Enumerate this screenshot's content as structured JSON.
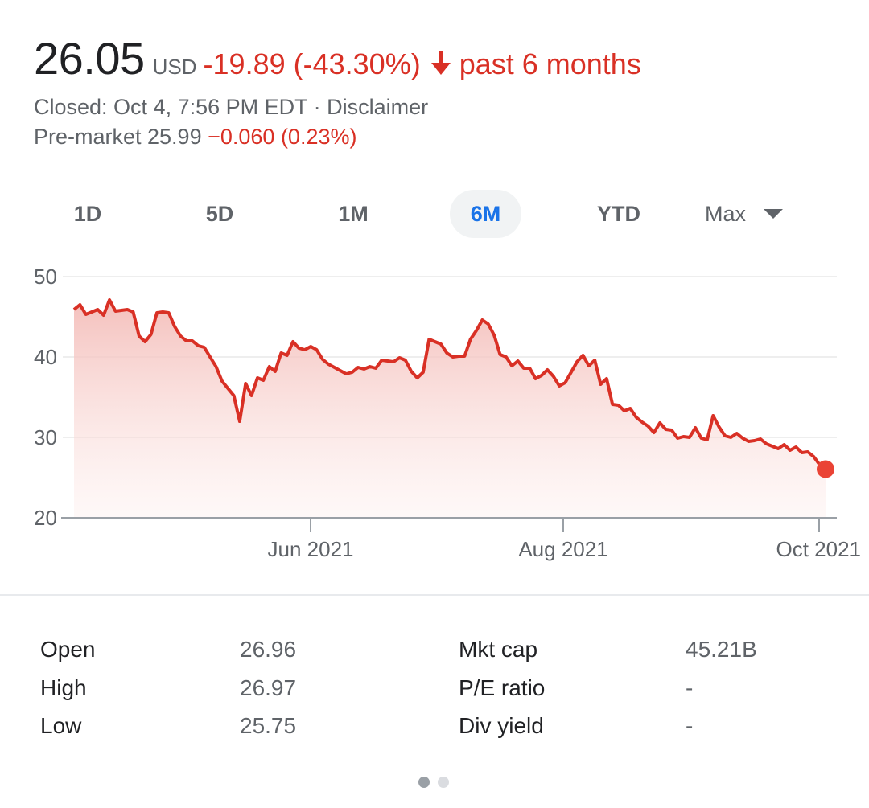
{
  "header": {
    "price": "26.05",
    "currency": "USD",
    "change": "-19.89 (-43.30%)",
    "period": "past 6 months",
    "closed_text": "Closed: Oct 4, 7:56 PM EDT · Disclaimer",
    "premarket_label": "Pre-market 25.99",
    "premarket_change": "−0.060 (0.23%)",
    "accent_color": "#d93025"
  },
  "tabs": [
    {
      "label": "1D",
      "active": false
    },
    {
      "label": "5D",
      "active": false
    },
    {
      "label": "1M",
      "active": false
    },
    {
      "label": "6M",
      "active": true
    },
    {
      "label": "YTD",
      "active": false
    },
    {
      "label": "Max",
      "active": false
    }
  ],
  "chart_data": {
    "type": "area",
    "y_ticks": [
      "50",
      "40",
      "30",
      "20"
    ],
    "x_ticks": [
      "Jun 2021",
      "Aug 2021",
      "Oct 2021"
    ],
    "ylim": [
      20,
      50
    ],
    "grid": true,
    "line_color": "#d93025",
    "values": [
      45.9,
      46.5,
      45.3,
      45.6,
      45.9,
      45.2,
      47.1,
      45.7,
      45.8,
      45.9,
      45.6,
      42.6,
      41.9,
      42.8,
      45.5,
      45.6,
      45.5,
      43.8,
      42.6,
      42.0,
      42.0,
      41.4,
      41.2,
      40.0,
      38.8,
      37.0,
      36.1,
      35.2,
      32.0,
      36.7,
      35.2,
      37.4,
      37.1,
      38.8,
      38.2,
      40.5,
      40.2,
      41.9,
      41.1,
      40.9,
      41.3,
      40.9,
      39.7,
      39.1,
      38.7,
      38.3,
      37.9,
      38.1,
      38.7,
      38.5,
      38.8,
      38.6,
      39.6,
      39.5,
      39.4,
      39.9,
      39.6,
      38.2,
      37.4,
      38.1,
      42.2,
      41.9,
      41.6,
      40.5,
      40.0,
      40.1,
      40.1,
      42.2,
      43.3,
      44.6,
      44.1,
      42.7,
      40.3,
      40.0,
      38.9,
      39.5,
      38.6,
      38.6,
      37.3,
      37.7,
      38.4,
      37.6,
      36.4,
      36.8,
      38.1,
      39.4,
      40.2,
      38.9,
      39.6,
      36.6,
      37.3,
      34.1,
      34.0,
      33.3,
      33.6,
      32.5,
      31.9,
      31.4,
      30.6,
      31.8,
      31.0,
      30.9,
      29.9,
      30.1,
      30.0,
      31.2,
      29.9,
      29.7,
      32.7,
      31.3,
      30.2,
      30.0,
      30.5,
      29.9,
      29.5,
      29.6,
      29.8,
      29.2,
      28.9,
      28.6,
      29.1,
      28.4,
      28.8,
      28.1,
      28.2,
      27.6,
      26.6,
      26.05
    ]
  },
  "stats": {
    "col1": [
      {
        "label": "Open",
        "value": "26.96"
      },
      {
        "label": "High",
        "value": "26.97"
      },
      {
        "label": "Low",
        "value": "25.75"
      }
    ],
    "col2": [
      {
        "label": "Mkt cap",
        "value": "45.21B"
      },
      {
        "label": "P/E ratio",
        "value": "-"
      },
      {
        "label": "Div yield",
        "value": "-"
      }
    ]
  }
}
